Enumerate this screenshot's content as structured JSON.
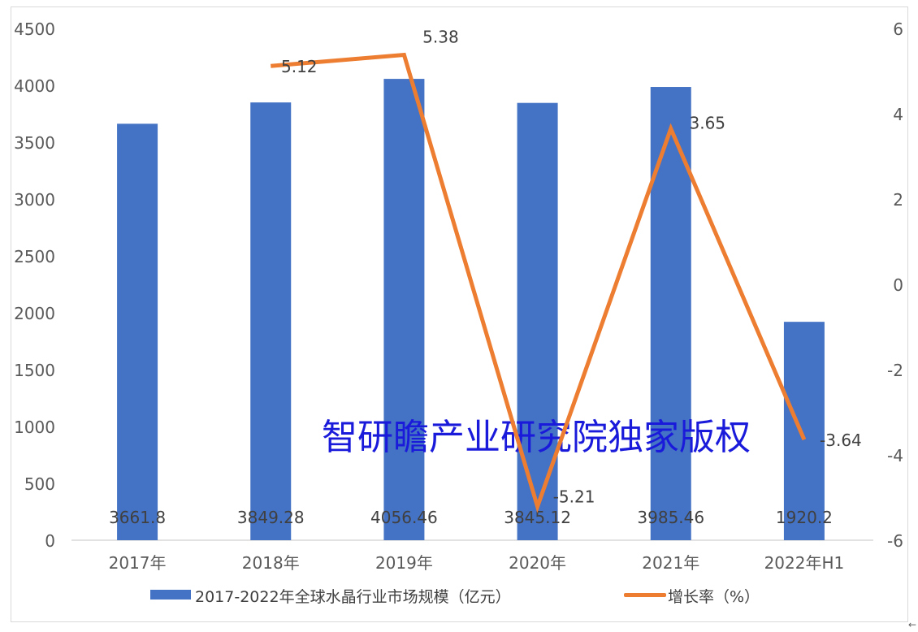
{
  "chart_data": {
    "type": "bar+line",
    "title": "",
    "categories": [
      "2017年",
      "2018年",
      "2019年",
      "2020年",
      "2021年",
      "2022年H1"
    ],
    "series": [
      {
        "name": "2017-2022年全球水晶行业市场规模（亿元）",
        "type": "bar",
        "axis": "left",
        "color": "#4472C4",
        "values": [
          3661.8,
          3849.28,
          4056.46,
          3845.12,
          3985.46,
          1920.2
        ],
        "labels": [
          "3661.8",
          "3849.28",
          "4056.46",
          "3845.12",
          "3985.46",
          "1920.2"
        ]
      },
      {
        "name": "增长率（%）",
        "type": "line",
        "axis": "right",
        "color": "#ED7D31",
        "values": [
          null,
          5.12,
          5.38,
          -5.21,
          3.65,
          -3.64
        ],
        "labels": [
          "",
          "5.12",
          "5.38",
          "-5.21",
          "3.65",
          "-3.64"
        ]
      }
    ],
    "left_axis": {
      "min": 0,
      "max": 4500,
      "step": 500,
      "ticks": [
        "0",
        "500",
        "1000",
        "1500",
        "2000",
        "2500",
        "3000",
        "3500",
        "4000",
        "4500"
      ]
    },
    "right_axis": {
      "min": -6,
      "max": 6,
      "step": 2,
      "ticks": [
        "-6",
        "-4",
        "-2",
        "0",
        "2",
        "4",
        "6"
      ]
    },
    "xlabel": "",
    "ylabel": "",
    "grid": false,
    "legend_position": "bottom"
  },
  "legend": {
    "bar_label": "2017-2022年全球水晶行业市场规模（亿元）",
    "line_label": "增长率（%）"
  },
  "watermark": "智研瞻产业研究院独家版权",
  "corner_mark": "←"
}
